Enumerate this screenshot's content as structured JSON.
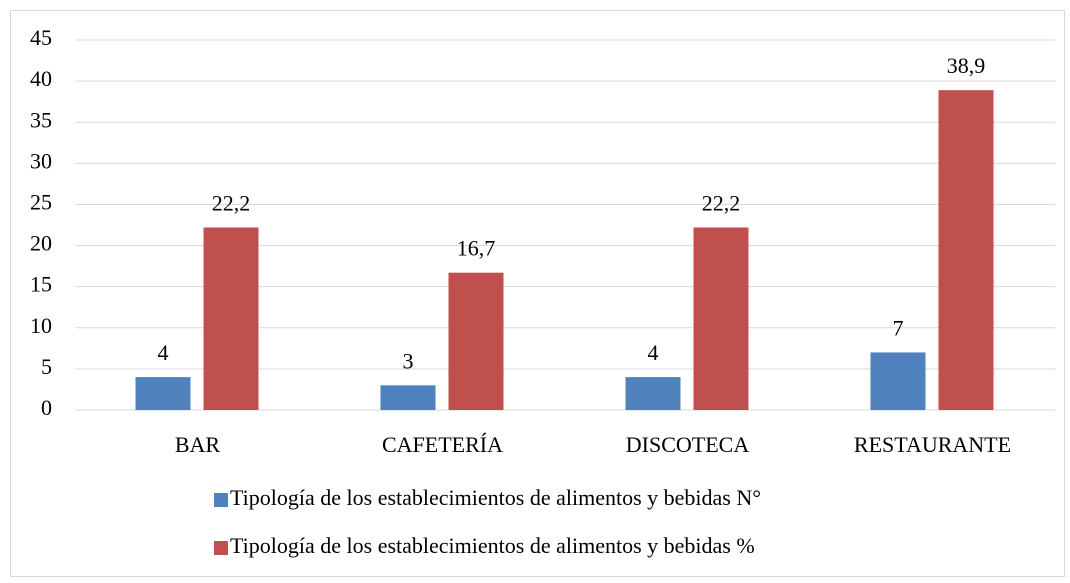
{
  "chart_data": {
    "type": "bar",
    "categories": [
      "BAR",
      "CAFETERÍA",
      "DISCOTECA",
      "RESTAURANTE"
    ],
    "series": [
      {
        "name": "Tipología de los establecimientos de alimentos y bebidas N°",
        "color": "#4f81bd",
        "values": [
          4,
          3,
          4,
          7
        ]
      },
      {
        "name": "Tipología de los establecimientos de alimentos y bebidas %",
        "color": "#c0504d",
        "values": [
          22.2,
          16.7,
          22.2,
          38.9
        ],
        "value_labels": [
          "22,2",
          "16,7",
          "22,2",
          "38,9"
        ]
      }
    ],
    "ylim": [
      0,
      45
    ],
    "yticks": [
      0,
      5,
      10,
      15,
      20,
      25,
      30,
      35,
      40,
      45
    ],
    "grid": true,
    "legend": "bottom"
  }
}
